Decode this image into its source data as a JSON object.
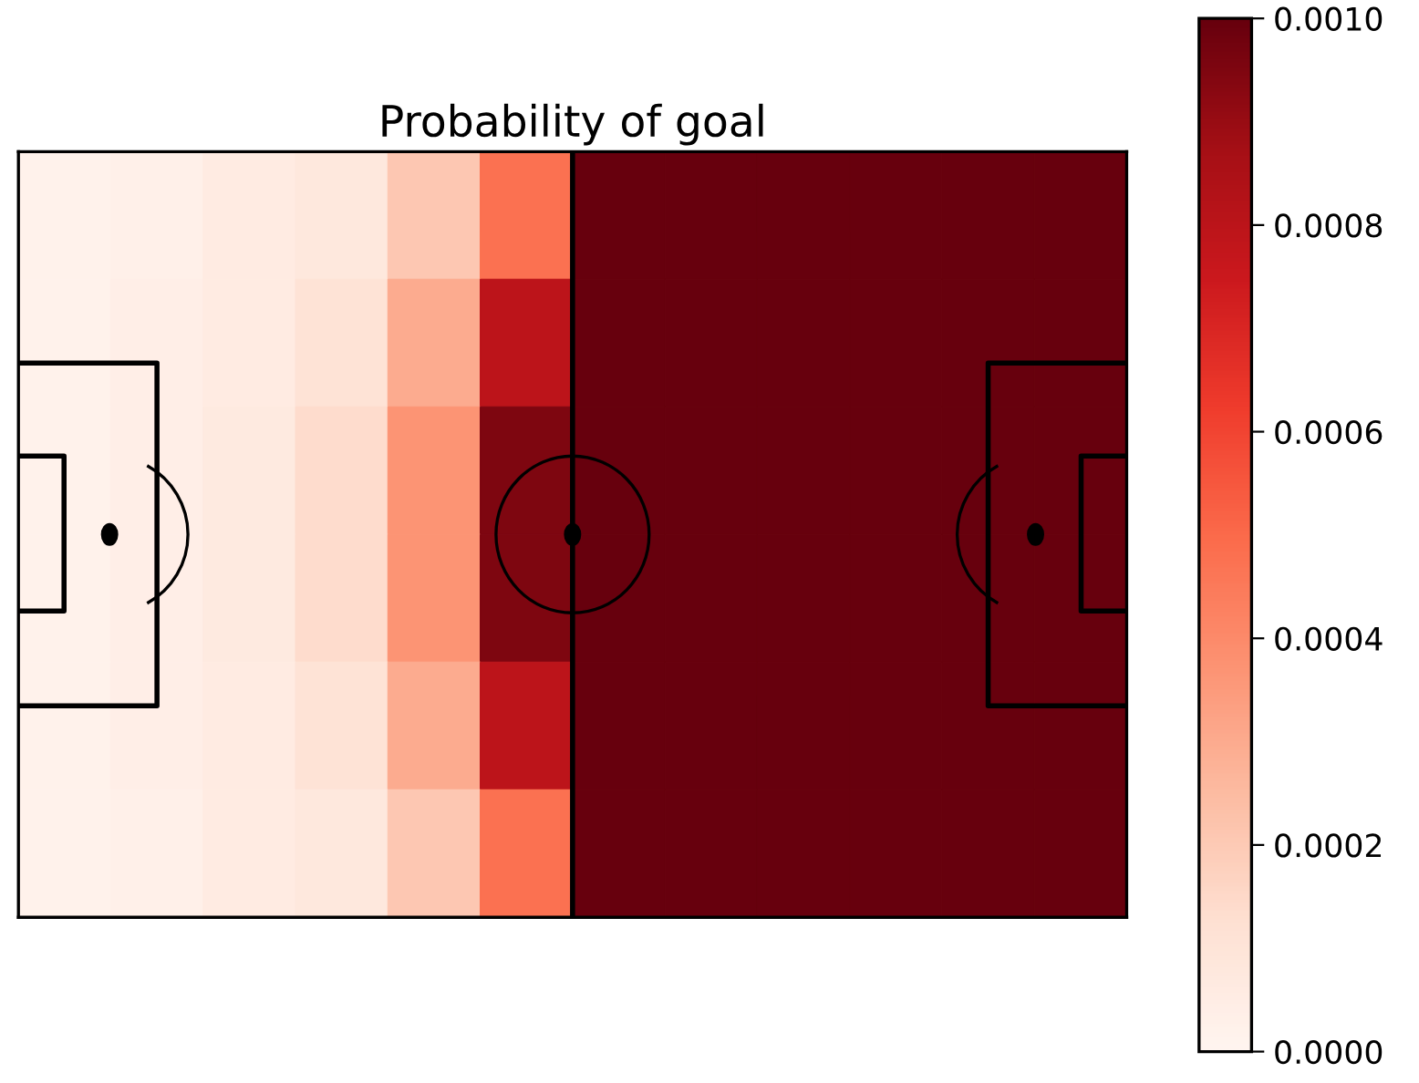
{
  "chart_data": {
    "type": "heatmap",
    "title": "Probability of goal",
    "categories": [
      null,
      null,
      null,
      null,
      null,
      null,
      null,
      null,
      null,
      null,
      null,
      null
    ],
    "y_categories": [
      null,
      null,
      null,
      null,
      null,
      null
    ],
    "cells": [
      [
        2e-05,
        3e-05,
        6e-05,
        8e-05,
        0.00021,
        0.00048,
        0.001,
        0.001,
        0.001,
        0.001,
        0.001,
        0.001
      ],
      [
        2e-05,
        4e-05,
        6e-05,
        0.00011,
        0.0003,
        0.0008,
        0.001,
        0.001,
        0.001,
        0.001,
        0.001,
        0.001
      ],
      [
        2e-05,
        4e-05,
        7e-05,
        0.00014,
        0.00037,
        0.00095,
        0.001,
        0.001,
        0.001,
        0.001,
        0.001,
        0.001
      ],
      [
        2e-05,
        4e-05,
        7e-05,
        0.00014,
        0.00037,
        0.00095,
        0.001,
        0.001,
        0.001,
        0.001,
        0.001,
        0.001
      ],
      [
        2e-05,
        4e-05,
        6e-05,
        0.00011,
        0.0003,
        0.0008,
        0.001,
        0.001,
        0.001,
        0.001,
        0.001,
        0.001
      ],
      [
        2e-05,
        3e-05,
        6e-05,
        8e-05,
        0.00021,
        0.00048,
        0.001,
        0.001,
        0.001,
        0.001,
        0.001,
        0.001
      ]
    ],
    "clim": [
      0,
      0.001
    ],
    "cticks": [
      {
        "value": 0,
        "label": "0.0000"
      },
      {
        "value": 0.0002,
        "label": "0.0002"
      },
      {
        "value": 0.0004,
        "label": "0.0004"
      },
      {
        "value": 0.0006,
        "label": "0.0006"
      },
      {
        "value": 0.0008,
        "label": "0.0008"
      },
      {
        "value": 0.001,
        "label": "0.0010"
      }
    ],
    "tick_labels": false
  }
}
